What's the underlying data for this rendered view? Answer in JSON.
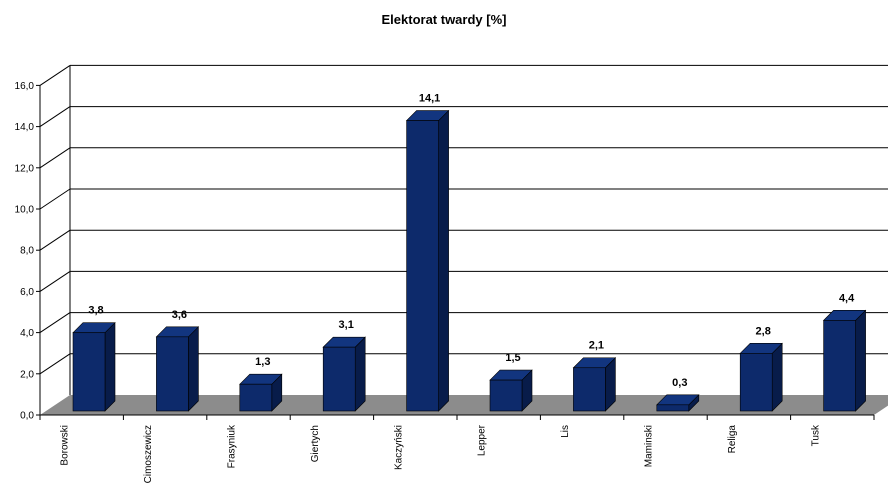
{
  "chart_data": {
    "type": "bar",
    "title": "Elektorat twardy [%]",
    "categories": [
      "Borowski",
      "Cimoszewicz",
      "Frasyniuk",
      "Giertych",
      "Kaczyński",
      "Lepper",
      "Lis",
      "Maminski",
      "Religa",
      "Tusk"
    ],
    "values": [
      3.8,
      3.6,
      1.3,
      3.1,
      14.1,
      1.5,
      2.1,
      0.3,
      2.8,
      4.4
    ],
    "value_labels": [
      "3,8",
      "3,6",
      "1,3",
      "3,1",
      "14,1",
      "1,5",
      "2,1",
      "0,3",
      "2,8",
      "4,4"
    ],
    "y_ticks": [
      "0,0",
      "2,0",
      "4,0",
      "6,0",
      "8,0",
      "10,0",
      "12,0",
      "14,0",
      "16,0"
    ],
    "ylim": [
      0,
      16
    ],
    "grid": true,
    "legend": "none",
    "style_3d": true
  },
  "colors": {
    "bar_front": "#0d2a6b",
    "bar_side": "#081c4a",
    "bar_top": "#12357f",
    "floor": "#8c8c8c",
    "grid": "#000000"
  }
}
